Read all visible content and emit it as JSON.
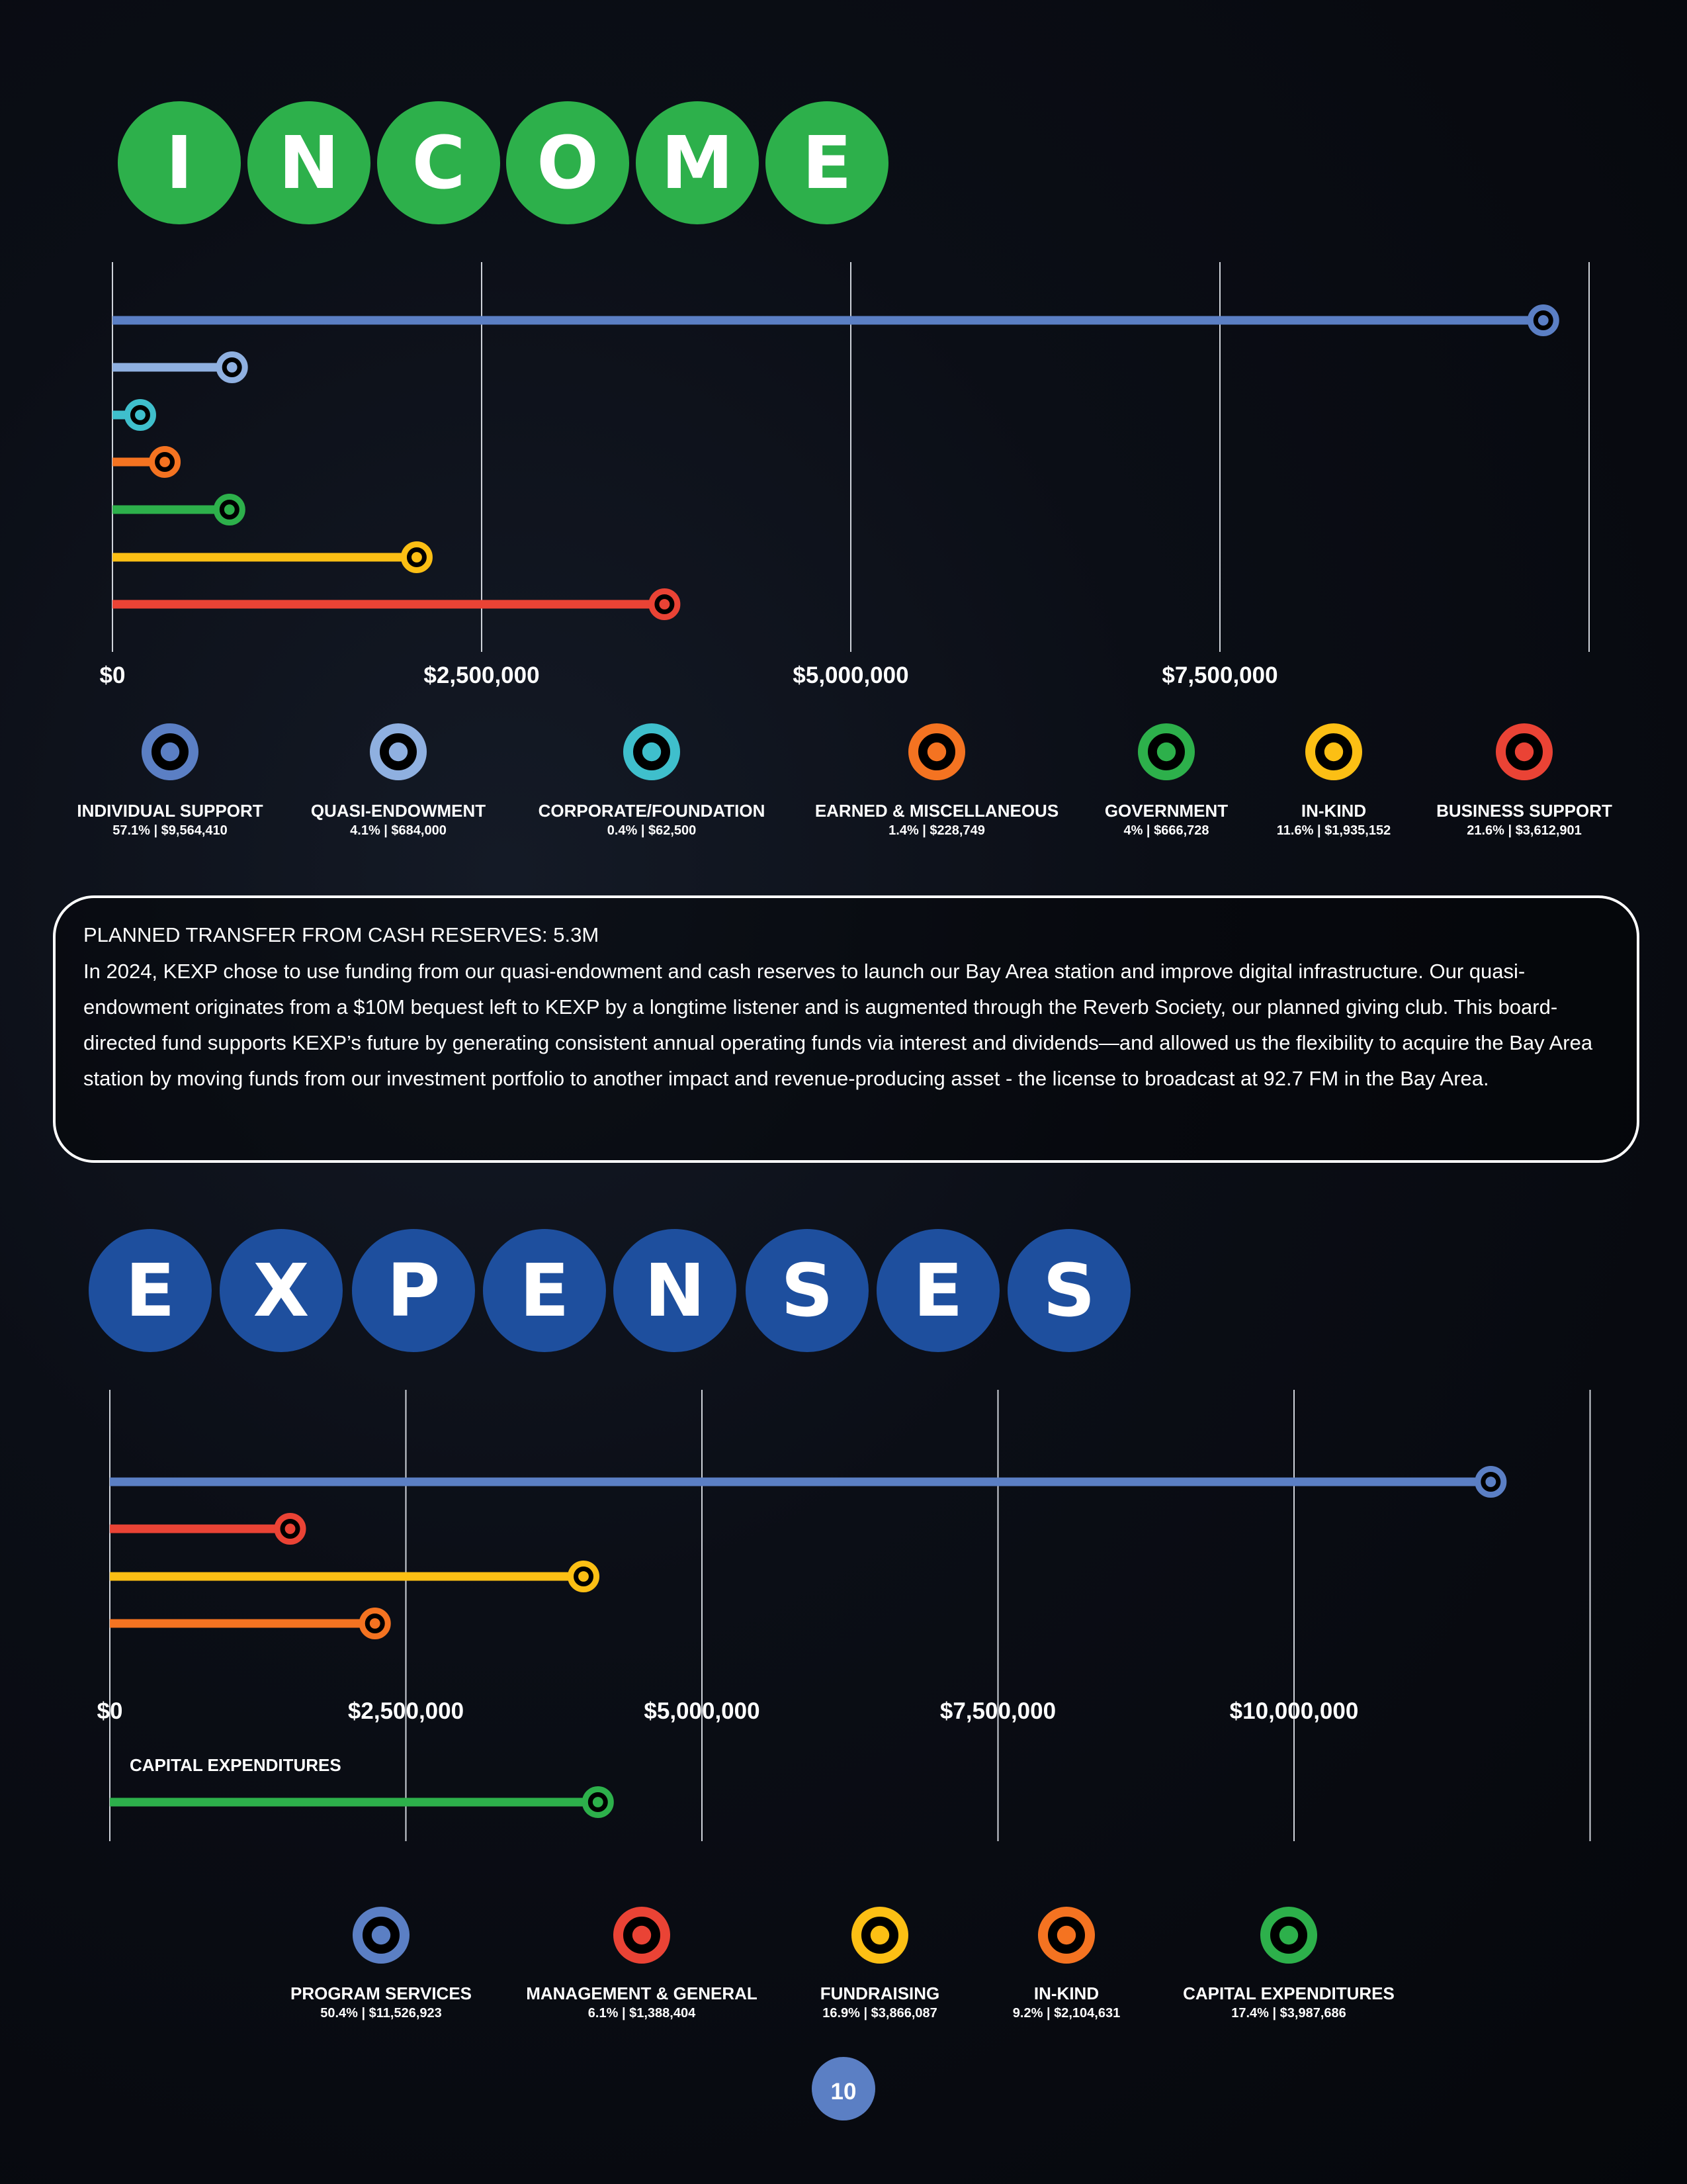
{
  "income_title": [
    "I",
    "N",
    "C",
    "O",
    "M",
    "E"
  ],
  "expenses_title": [
    "E",
    "X",
    "P",
    "E",
    "N",
    "S",
    "E",
    "S"
  ],
  "colors": {
    "income_title": "#2db04b",
    "expenses_title": "#1e4f9e",
    "page_number": "#5b7fc4"
  },
  "note": {
    "title": "PLANNED TRANSFER FROM CASH RESERVES: 5.3M",
    "body": "In 2024, KEXP chose to use funding from our quasi-endowment and cash reserves to launch our Bay Area station and improve digital infrastructure. Our quasi-endowment originates from a $10M bequest left to KEXP by a longtime listener and is augmented through the Reverb Society, our planned giving club. This board-directed fund supports KEXP’s future by generating consistent annual  operating funds via interest and dividends—and allowed us the flexibility to acquire the Bay Area station by moving funds from our investment portfolio to another impact and revenue-producing asset - the license to broadcast at 92.7 FM in the Bay Area."
  },
  "page_number": "10",
  "chart_data": [
    {
      "type": "bar",
      "orientation": "horizontal",
      "xlim": [
        0,
        10000000
      ],
      "x_ticks": [
        "$0",
        "$2,500,000",
        "$5,000,000",
        "$7,500,000"
      ],
      "grid": true,
      "legend": "bottom",
      "series": [
        {
          "name": "INDIVIDUAL SUPPORT",
          "value": 9564410,
          "share": "57.1% | $9,564,410",
          "color": "#5b7fc4"
        },
        {
          "name": "QUASI-ENDOWMENT",
          "value": 684000,
          "share": "4.1% | $684,000",
          "color": "#8fb0e0"
        },
        {
          "name": "CORPORATE/FOUNDATION",
          "value": 62500,
          "share": "0.4% | $62,500",
          "color": "#3fbfcc"
        },
        {
          "name": "EARNED & MISCELLANEOUS",
          "value": 228749,
          "share": "1.4% | $228,749",
          "color": "#f47321"
        },
        {
          "name": "GOVERNMENT",
          "value": 666728,
          "share": "4% | $666,728",
          "color": "#2db04b"
        },
        {
          "name": "IN-KIND",
          "value": 1935152,
          "share": "11.6% | $1,935,152",
          "color": "#fcbf14"
        },
        {
          "name": "BUSINESS SUPPORT",
          "value": 3612901,
          "share": "21.6% | $3,612,901",
          "color": "#ea4335"
        }
      ]
    },
    {
      "type": "bar",
      "orientation": "horizontal",
      "xlim": [
        0,
        12500000
      ],
      "x_ticks": [
        "$0",
        "$2,500,000",
        "$5,000,000",
        "$7,500,000",
        "$10,000,000"
      ],
      "grid": true,
      "legend": "bottom",
      "separate_row_label": "CAPITAL EXPENDITURES",
      "series": [
        {
          "name": "PROGRAM SERVICES",
          "value": 11526923,
          "share": "50.4% | $11,526,923",
          "color": "#5b7fc4"
        },
        {
          "name": "MANAGEMENT & GENERAL",
          "value": 1388404,
          "share": "6.1% | $1,388,404",
          "color": "#ea4335"
        },
        {
          "name": "FUNDRAISING",
          "value": 3866087,
          "share": "16.9% | $3,866,087",
          "color": "#fcbf14"
        },
        {
          "name": "IN-KIND",
          "value": 2104631,
          "share": "9.2% | $2,104,631",
          "color": "#f47321"
        },
        {
          "name": "CAPITAL EXPENDITURES",
          "value": 3987686,
          "share": "17.4% | $3,987,686",
          "color": "#2db04b"
        }
      ]
    }
  ]
}
